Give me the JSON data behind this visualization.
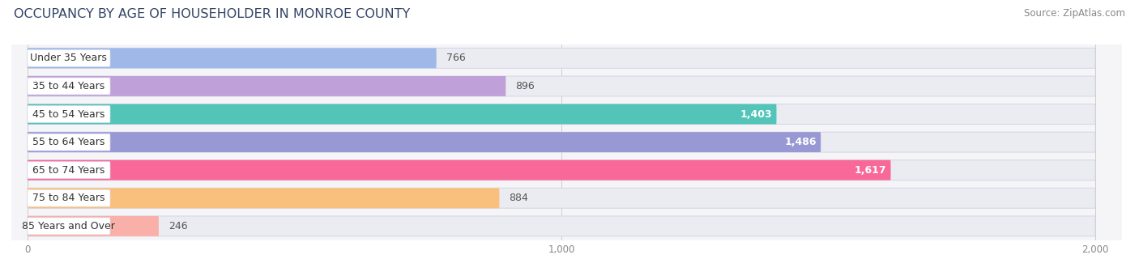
{
  "title": "OCCUPANCY BY AGE OF HOUSEHOLDER IN MONROE COUNTY",
  "source": "Source: ZipAtlas.com",
  "categories": [
    "Under 35 Years",
    "35 to 44 Years",
    "45 to 54 Years",
    "55 to 64 Years",
    "65 to 74 Years",
    "75 to 84 Years",
    "85 Years and Over"
  ],
  "values": [
    766,
    896,
    1403,
    1486,
    1617,
    884,
    246
  ],
  "bar_colors": [
    "#9eb8e8",
    "#c0a0d8",
    "#52c4b8",
    "#9898d4",
    "#f86898",
    "#f8c07c",
    "#f8b0a8"
  ],
  "bar_bg_color": "#ebebf2",
  "bar_outline_color": "#d8d8e8",
  "xlim_max": 2000,
  "xticks": [
    0,
    1000,
    2000
  ],
  "title_fontsize": 11.5,
  "source_fontsize": 8.5,
  "label_fontsize": 9,
  "value_fontsize": 9,
  "bar_height": 0.72,
  "background_color": "#ffffff",
  "fig_width": 14.06,
  "fig_height": 3.41,
  "value_threshold": 1000,
  "label_bg_color": "#ffffff",
  "gap_color": "#f5f5f8"
}
